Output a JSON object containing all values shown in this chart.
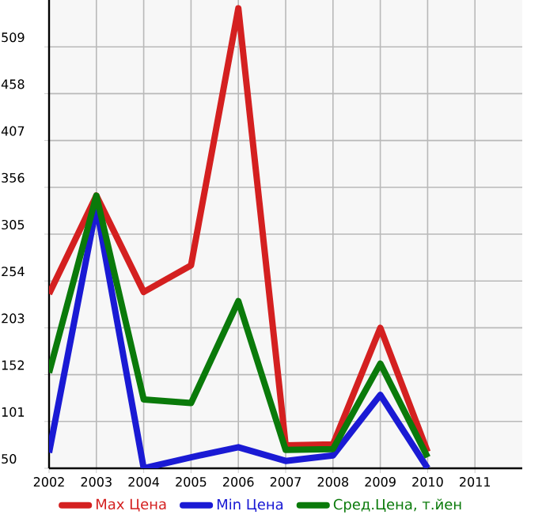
{
  "chart_data": {
    "type": "line",
    "x": [
      2002,
      2003,
      2004,
      2005,
      2006,
      2007,
      2008,
      2009,
      2010
    ],
    "xlim": [
      2002,
      2012
    ],
    "xticks": [
      2002,
      2003,
      2004,
      2005,
      2006,
      2007,
      2008,
      2009,
      2010,
      2011
    ],
    "ylim": [
      50,
      560
    ],
    "yticks": [
      50,
      101,
      152,
      203,
      254,
      305,
      356,
      407,
      458,
      509
    ],
    "grid": true,
    "legend": "bottom",
    "marker": "none",
    "line_style": "solid",
    "series": [
      {
        "name": "Max Цена",
        "color": "#d42020",
        "values": [
          240,
          347,
          242,
          271,
          551,
          75,
          76,
          203,
          68
        ]
      },
      {
        "name": "Min Цена",
        "color": "#1a1ad4",
        "values": [
          67,
          335,
          50,
          62,
          73,
          58,
          64,
          130,
          50
        ]
      },
      {
        "name": "Сред.Цена, т.йен",
        "color": "#0a7a0a",
        "values": [
          154,
          347,
          125,
          121,
          232,
          70,
          71,
          164,
          62
        ]
      }
    ]
  }
}
